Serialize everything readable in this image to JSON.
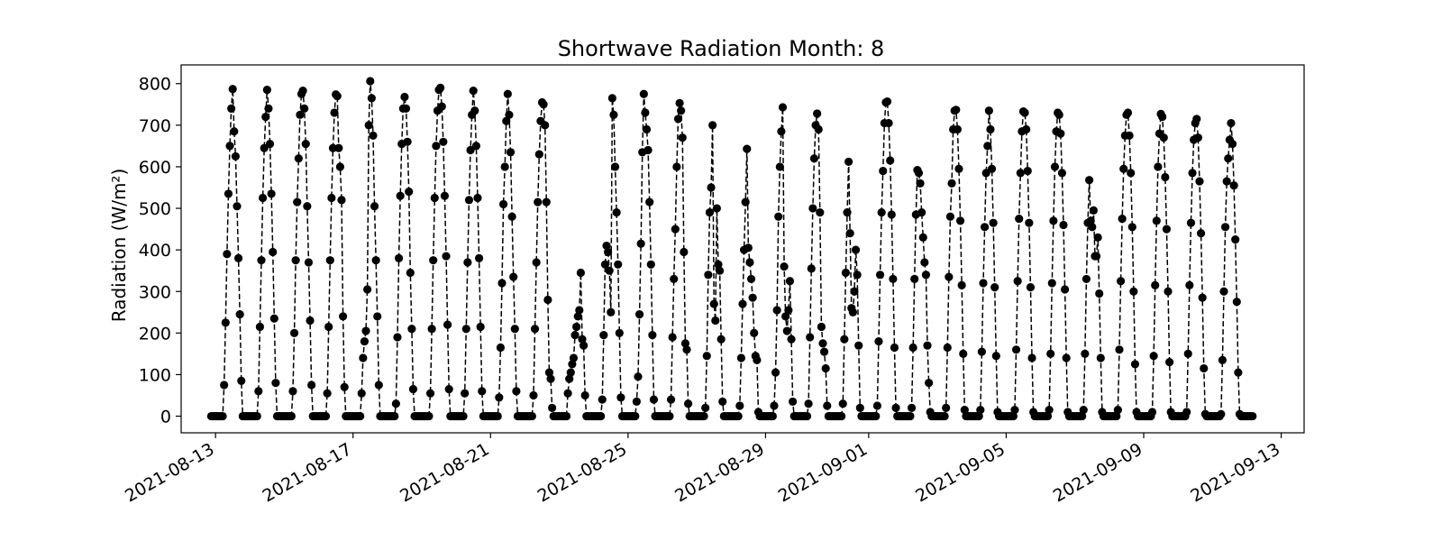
{
  "chart_data": {
    "type": "line",
    "title": "Shortwave Radiation Month: 8",
    "xlabel": "",
    "ylabel": "Radiation (W/m²)",
    "x_axis": {
      "kind": "date",
      "range": [
        "2021-08-12T00:00",
        "2021-09-13T16:00"
      ],
      "ticks": [
        "2021-08-13",
        "2021-08-17",
        "2021-08-21",
        "2021-08-25",
        "2021-08-29",
        "2021-09-01",
        "2021-09-05",
        "2021-09-09",
        "2021-09-13"
      ],
      "tick_label_rotation_deg": 30
    },
    "y_axis": {
      "range": [
        -40,
        845
      ],
      "ticks": [
        0,
        100,
        200,
        300,
        400,
        500,
        600,
        700,
        800
      ]
    },
    "grid": false,
    "legend": "none",
    "series": [
      {
        "marker": "filled-circle",
        "line_style": "dashed",
        "color": "#000000",
        "sampling": "hourly",
        "start": "2021-08-12T21:00",
        "days": [
          {
            "date": "2021-08-13",
            "peak": 787,
            "profile": [
              0,
              75,
              225,
              390,
              535,
              650,
              740,
              787,
              685,
              625,
              505,
              380,
              245,
              85
            ]
          },
          {
            "date": "2021-08-14",
            "peak": 785,
            "profile": [
              0,
              60,
              215,
              375,
              525,
              645,
              720,
              785,
              740,
              655,
              535,
              395,
              235,
              80
            ]
          },
          {
            "date": "2021-08-15",
            "peak": 783,
            "profile": [
              0,
              60,
              200,
              375,
              515,
              620,
              725,
              775,
              783,
              740,
              655,
              505,
              370,
              230,
              75
            ]
          },
          {
            "date": "2021-08-16",
            "peak": 774,
            "profile": [
              0,
              55,
              215,
              375,
              525,
              645,
              730,
              774,
              770,
              645,
              600,
              520,
              240,
              70
            ]
          },
          {
            "date": "2021-08-17",
            "peak": 806,
            "profile": [
              0,
              55,
              140,
              180,
              205,
              305,
              700,
              806,
              765,
              675,
              505,
              375,
              240,
              75
            ]
          },
          {
            "date": "2021-08-18",
            "peak": 768,
            "profile": [
              0,
              30,
              190,
              380,
              530,
              655,
              740,
              768,
              740,
              660,
              540,
              345,
              210,
              65
            ]
          },
          {
            "date": "2021-08-19",
            "peak": 790,
            "profile": [
              0,
              55,
              210,
              375,
              525,
              650,
              735,
              785,
              790,
              745,
              660,
              530,
              385,
              220,
              65
            ]
          },
          {
            "date": "2021-08-20",
            "peak": 783,
            "profile": [
              0,
              55,
              210,
              370,
              520,
              640,
              725,
              783,
              735,
              650,
              525,
              380,
              215,
              60
            ]
          },
          {
            "date": "2021-08-21",
            "peak": 775,
            "profile": [
              0,
              45,
              165,
              320,
              510,
              600,
              710,
              775,
              725,
              635,
              480,
              335,
              210,
              60
            ]
          },
          {
            "date": "2021-08-22",
            "peak": 755,
            "profile": [
              0,
              50,
              210,
              370,
              515,
              630,
              710,
              755,
              750,
              700,
              515,
              280,
              105,
              90,
              20
            ]
          },
          {
            "date": "2021-08-23",
            "peak": 345,
            "profile": [
              0,
              55,
              90,
              105,
              125,
              140,
              195,
              215,
              240,
              255,
              345,
              185,
              170,
              50
            ]
          },
          {
            "date": "2021-08-24",
            "peak": 765,
            "profile": [
              0,
              40,
              195,
              365,
              410,
              395,
              350,
              250,
              765,
              725,
              600,
              490,
              365,
              200,
              45
            ]
          },
          {
            "date": "2021-08-25",
            "peak": 775,
            "profile": [
              0,
              35,
              95,
              245,
              415,
              635,
              775,
              730,
              690,
              640,
              515,
              365,
              195,
              40
            ]
          },
          {
            "date": "2021-08-26",
            "peak": 753,
            "profile": [
              0,
              40,
              190,
              330,
              450,
              600,
              715,
              753,
              735,
              670,
              395,
              175,
              160,
              30
            ]
          },
          {
            "date": "2021-08-27",
            "peak": 700,
            "profile": [
              0,
              20,
              145,
              340,
              490,
              550,
              700,
              270,
              230,
              500,
              365,
              350,
              185,
              35
            ]
          },
          {
            "date": "2021-08-28",
            "peak": 643,
            "profile": [
              0,
              25,
              140,
              270,
              400,
              515,
              643,
              405,
              370,
              330,
              285,
              200,
              145,
              135,
              10
            ]
          },
          {
            "date": "2021-08-29",
            "peak": 743,
            "profile": [
              0,
              25,
              105,
              255,
              480,
              600,
              685,
              743,
              360,
              240,
              205,
              255,
              325,
              185,
              35
            ]
          },
          {
            "date": "2021-08-30",
            "peak": 728,
            "profile": [
              0,
              30,
              190,
              355,
              500,
              620,
              700,
              728,
              690,
              490,
              215,
              175,
              155,
              115,
              25
            ]
          },
          {
            "date": "2021-08-31",
            "peak": 612,
            "profile": [
              0,
              30,
              185,
              345,
              490,
              612,
              440,
              260,
              250,
              300,
              400,
              340,
              170,
              20
            ]
          },
          {
            "date": "2021-09-01",
            "peak": 757,
            "profile": [
              0,
              25,
              180,
              340,
              490,
              590,
              705,
              755,
              757,
              705,
              615,
              485,
              330,
              165,
              20
            ]
          },
          {
            "date": "2021-09-02",
            "peak": 592,
            "profile": [
              0,
              20,
              165,
              330,
              485,
              592,
              585,
              560,
              490,
              430,
              370,
              340,
              170,
              80,
              10
            ]
          },
          {
            "date": "2021-09-03",
            "peak": 737,
            "profile": [
              0,
              20,
              165,
              335,
              480,
              560,
              690,
              735,
              737,
              690,
              595,
              470,
              315,
              150,
              15
            ]
          },
          {
            "date": "2021-09-04",
            "peak": 735,
            "profile": [
              0,
              15,
              155,
              320,
              455,
              585,
              650,
              735,
              690,
              595,
              465,
              310,
              145,
              10
            ]
          },
          {
            "date": "2021-09-05",
            "peak": 733,
            "profile": [
              0,
              15,
              160,
              325,
              475,
              585,
              685,
              733,
              730,
              690,
              590,
              465,
              310,
              140,
              10
            ]
          },
          {
            "date": "2021-09-06",
            "peak": 730,
            "profile": [
              0,
              15,
              150,
              320,
              470,
              600,
              685,
              730,
              725,
              680,
              585,
              460,
              305,
              140,
              10
            ]
          },
          {
            "date": "2021-09-07",
            "peak": 568,
            "profile": [
              0,
              15,
              150,
              330,
              465,
              568,
              470,
              455,
              495,
              385,
              385,
              430,
              295,
              140,
              10
            ]
          },
          {
            "date": "2021-09-08",
            "peak": 730,
            "profile": [
              0,
              15,
              160,
              325,
              475,
              595,
              675,
              725,
              730,
              675,
              585,
              455,
              300,
              125,
              10
            ]
          },
          {
            "date": "2021-09-09",
            "peak": 727,
            "profile": [
              0,
              10,
              145,
              315,
              470,
              600,
              680,
              727,
              720,
              670,
              575,
              450,
              300,
              130,
              10
            ]
          },
          {
            "date": "2021-09-10",
            "peak": 715,
            "profile": [
              0,
              10,
              150,
              315,
              465,
              585,
              665,
              705,
              715,
              670,
              565,
              440,
              285,
              115,
              5
            ]
          },
          {
            "date": "2021-09-11",
            "peak": 705,
            "profile": [
              0,
              5,
              135,
              300,
              455,
              565,
              620,
              665,
              705,
              655,
              555,
              425,
              275,
              105,
              5
            ]
          }
        ]
      }
    ]
  }
}
